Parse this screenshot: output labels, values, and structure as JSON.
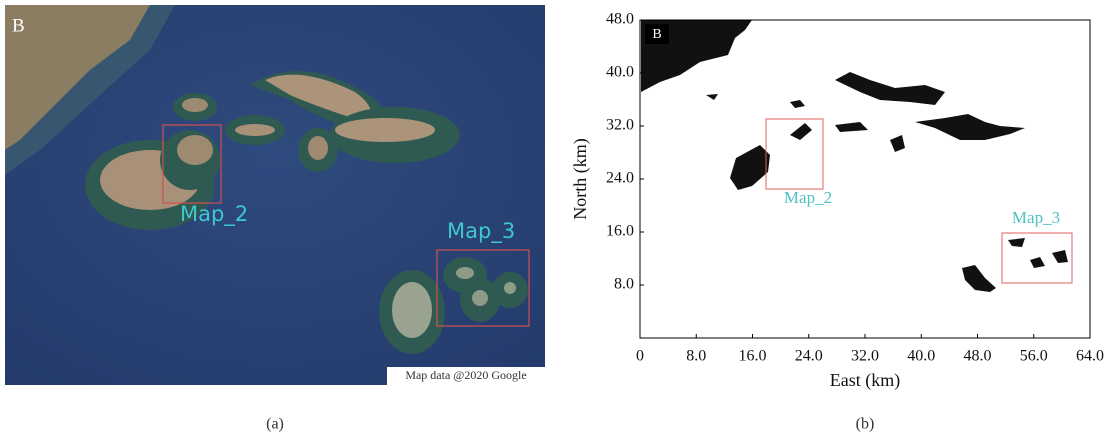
{
  "panel_a": {
    "label": "B",
    "boxes": [
      "Map_2",
      "Map_3"
    ],
    "credit": "Map data @2020 Google",
    "caption": "(a)"
  },
  "panel_b": {
    "label": "B",
    "xlabel": "East (km)",
    "ylabel": "North (km)",
    "xlim": [
      0,
      64
    ],
    "ylim": [
      0,
      48
    ],
    "xticks": [
      0,
      {
        "value": 8,
        "label": "8.0"
      },
      {
        "value": 16,
        "label": "16.0"
      },
      {
        "value": 24,
        "label": "24.0"
      },
      {
        "value": 32,
        "label": "32.0"
      },
      {
        "value": 40,
        "label": "40.0"
      },
      {
        "value": 48,
        "label": "48.0"
      },
      {
        "value": 56,
        "label": "56.0"
      },
      {
        "value": 64,
        "label": "64.0"
      }
    ],
    "yticks": [
      {
        "value": 8,
        "label": "8.0"
      },
      {
        "value": 16,
        "label": "16.0"
      },
      {
        "value": 24,
        "label": "24.0"
      },
      {
        "value": 32,
        "label": "32.0"
      },
      {
        "value": 40,
        "label": "40.0"
      },
      {
        "value": 48,
        "label": "48.0"
      }
    ],
    "boxes": [
      "Map_2",
      "Map_3"
    ],
    "caption": "(b)"
  }
}
